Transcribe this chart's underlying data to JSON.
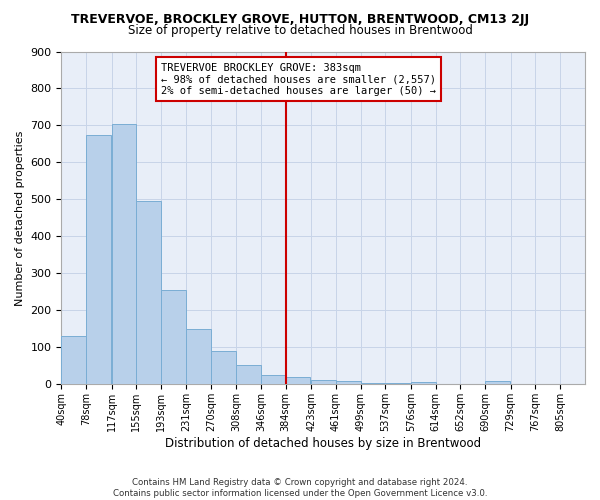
{
  "title": "TREVERVOE, BROCKLEY GROVE, HUTTON, BRENTWOOD, CM13 2JJ",
  "subtitle": "Size of property relative to detached houses in Brentwood",
  "xlabel": "Distribution of detached houses by size in Brentwood",
  "ylabel": "Number of detached properties",
  "bar_values": [
    130,
    675,
    705,
    495,
    255,
    150,
    90,
    52,
    25,
    20,
    12,
    8,
    5,
    3,
    7,
    2,
    2,
    8,
    0,
    0,
    0
  ],
  "bin_edges": [
    40,
    78,
    117,
    155,
    193,
    231,
    270,
    308,
    346,
    384,
    423,
    461,
    499,
    537,
    576,
    614,
    652,
    690,
    729,
    767,
    805
  ],
  "tick_labels": [
    "40sqm",
    "78sqm",
    "117sqm",
    "155sqm",
    "193sqm",
    "231sqm",
    "270sqm",
    "308sqm",
    "346sqm",
    "384sqm",
    "423sqm",
    "461sqm",
    "499sqm",
    "537sqm",
    "576sqm",
    "614sqm",
    "652sqm",
    "690sqm",
    "729sqm",
    "767sqm",
    "805sqm"
  ],
  "bar_color": "#b8d0ea",
  "bar_edge_color": "#7aadd4",
  "grid_color": "#c8d4e8",
  "background_color": "#e8eef8",
  "vline_color": "#cc0000",
  "annotation_text": "TREVERVOE BROCKLEY GROVE: 383sqm\n← 98% of detached houses are smaller (2,557)\n2% of semi-detached houses are larger (50) →",
  "ylim": [
    0,
    900
  ],
  "yticks": [
    0,
    100,
    200,
    300,
    400,
    500,
    600,
    700,
    800,
    900
  ],
  "footer_line1": "Contains HM Land Registry data © Crown copyright and database right 2024.",
  "footer_line2": "Contains public sector information licensed under the Open Government Licence v3.0."
}
